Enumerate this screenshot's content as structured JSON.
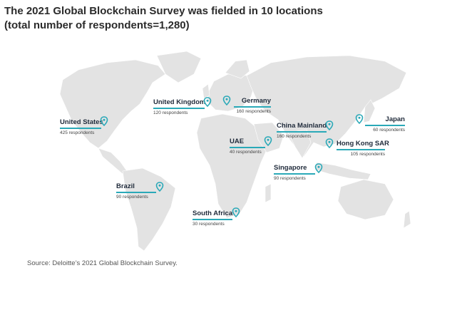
{
  "title_line1": "The 2021 Global Blockchain Survey was fielded in 10 locations",
  "title_line2": "(total number of respondents=1,280)",
  "pin_color": "#2aa9b8",
  "land_color": "#e3e3e3",
  "locations": [
    {
      "name": "United States",
      "respondents": "425 respondents"
    },
    {
      "name": "United Kingdom",
      "respondents": "120 respondents"
    },
    {
      "name": "Germany",
      "respondents": "160 respondents"
    },
    {
      "name": "China Mainland",
      "respondents": "160 respondents"
    },
    {
      "name": "Japan",
      "respondents": "60 respondents"
    },
    {
      "name": "UAE",
      "respondents": "40 respondents"
    },
    {
      "name": "Hong Kong SAR",
      "respondents": "105 respondents"
    },
    {
      "name": "Singapore",
      "respondents": "90 respondents"
    },
    {
      "name": "Brazil",
      "respondents": "90 respondents"
    },
    {
      "name": "South Africa",
      "respondents": "30 respondents"
    }
  ],
  "source": "Source: Deloitte’s 2021 Global Blockchain Survey."
}
